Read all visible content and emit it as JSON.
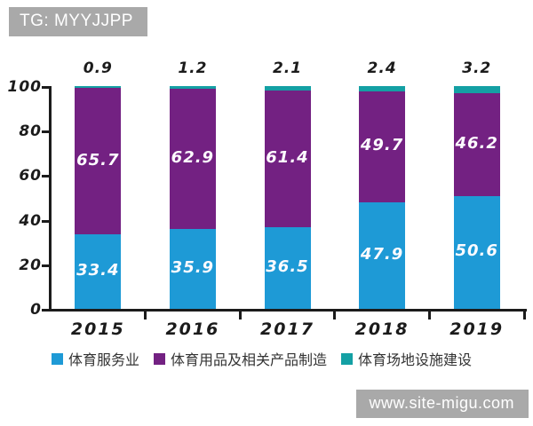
{
  "header": {
    "tag": "TG: MYYJJPP"
  },
  "watermark": {
    "text": "www.site-migu.com"
  },
  "colors": {
    "tag_background": "#a9a9a9",
    "watermark_background": "#a9a9a9",
    "axis": "#1b1b1b",
    "bar_label_text": "#fdfbff",
    "series_blue": "#1e9ad6",
    "series_purple": "#732182",
    "series_teal": "#14a0a4"
  },
  "chart_data": {
    "type": "bar",
    "stacked": true,
    "title": "",
    "xlabel": "",
    "ylabel": "",
    "categories": [
      "2015",
      "2016",
      "2017",
      "2018",
      "2019"
    ],
    "series": [
      {
        "name": "体育服务业",
        "color": "#1e9ad6",
        "values": [
          33.4,
          35.9,
          36.5,
          47.9,
          50.6
        ],
        "label_position": "inside"
      },
      {
        "name": "体育用品及相关产品制造",
        "color": "#732182",
        "values": [
          65.7,
          62.9,
          61.4,
          49.7,
          46.2
        ],
        "label_position": "inside"
      },
      {
        "name": "体育场地设施建设",
        "color": "#14a0a4",
        "values": [
          0.9,
          1.2,
          2.1,
          2.4,
          3.2
        ],
        "label_position": "above"
      }
    ],
    "ylim": [
      0,
      100
    ],
    "yticks": [
      0,
      20,
      40,
      60,
      80,
      100
    ],
    "grid": false,
    "legend_position": "bottom"
  }
}
